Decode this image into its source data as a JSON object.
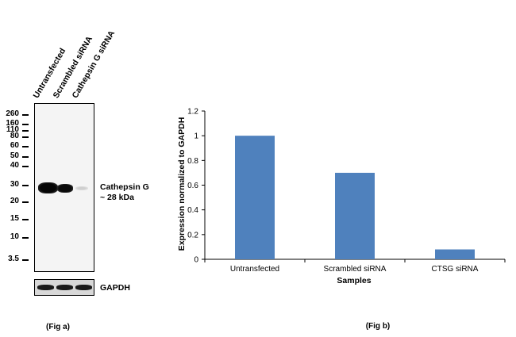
{
  "blot": {
    "lanes": [
      "Untransfected",
      "Scrambled siRNA",
      "Cathepsin G siRNA"
    ],
    "markers": [
      "260",
      "160",
      "110",
      "80",
      "60",
      "50",
      "40",
      "30",
      "20",
      "15",
      "10",
      "3.5"
    ],
    "band_label_line1": "Cathepsin G",
    "band_label_line2": "~ 28 kDa",
    "loading_control": "GAPDH",
    "fig_label": "(Fig a)"
  },
  "chart_data": {
    "type": "bar",
    "categories": [
      "Untransfected",
      "Scrambled siRNA",
      "CTSG siRNA"
    ],
    "values": [
      1.0,
      0.7,
      0.08
    ],
    "xlabel": "Samples",
    "ylabel": "Expression normalized to GAPDH",
    "ylim": [
      0,
      1.2
    ],
    "yticks": [
      "0",
      "0.2",
      "0.4",
      "0.6",
      "0.8",
      "1",
      "1.2"
    ],
    "bar_color": "#4f81bd",
    "fig_label": "(Fig b)"
  }
}
